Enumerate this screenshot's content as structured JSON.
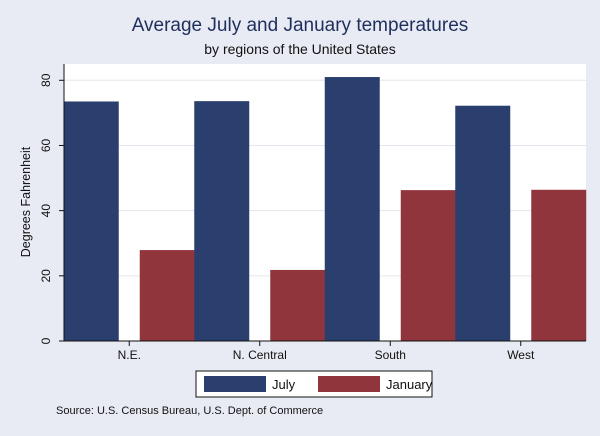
{
  "chart_data": {
    "type": "bar",
    "title": "Average July and January temperatures",
    "subtitle": "by regions of the United States",
    "xlabel": "",
    "ylabel": "Degrees Fahrenheit",
    "categories": [
      "N.E.",
      "N. Central",
      "South",
      "West"
    ],
    "series": [
      {
        "name": "July",
        "values": [
          73.5,
          73.6,
          81.0,
          72.2
        ],
        "color": "#2a3f6e"
      },
      {
        "name": "January",
        "values": [
          27.9,
          21.8,
          46.3,
          46.4
        ],
        "color": "#90353b"
      }
    ],
    "ylim": [
      0,
      85
    ],
    "yticks": [
      0,
      20,
      40,
      60,
      80
    ],
    "grid": true,
    "legend_position": "bottom",
    "note": "Source:  U.S. Census Bureau, U.S. Dept. of Commerce"
  },
  "colors": {
    "background": "#e8ebf4",
    "plot_background": "#ffffff",
    "grid": "#e3e6ee",
    "title": "#1f2f5c"
  }
}
